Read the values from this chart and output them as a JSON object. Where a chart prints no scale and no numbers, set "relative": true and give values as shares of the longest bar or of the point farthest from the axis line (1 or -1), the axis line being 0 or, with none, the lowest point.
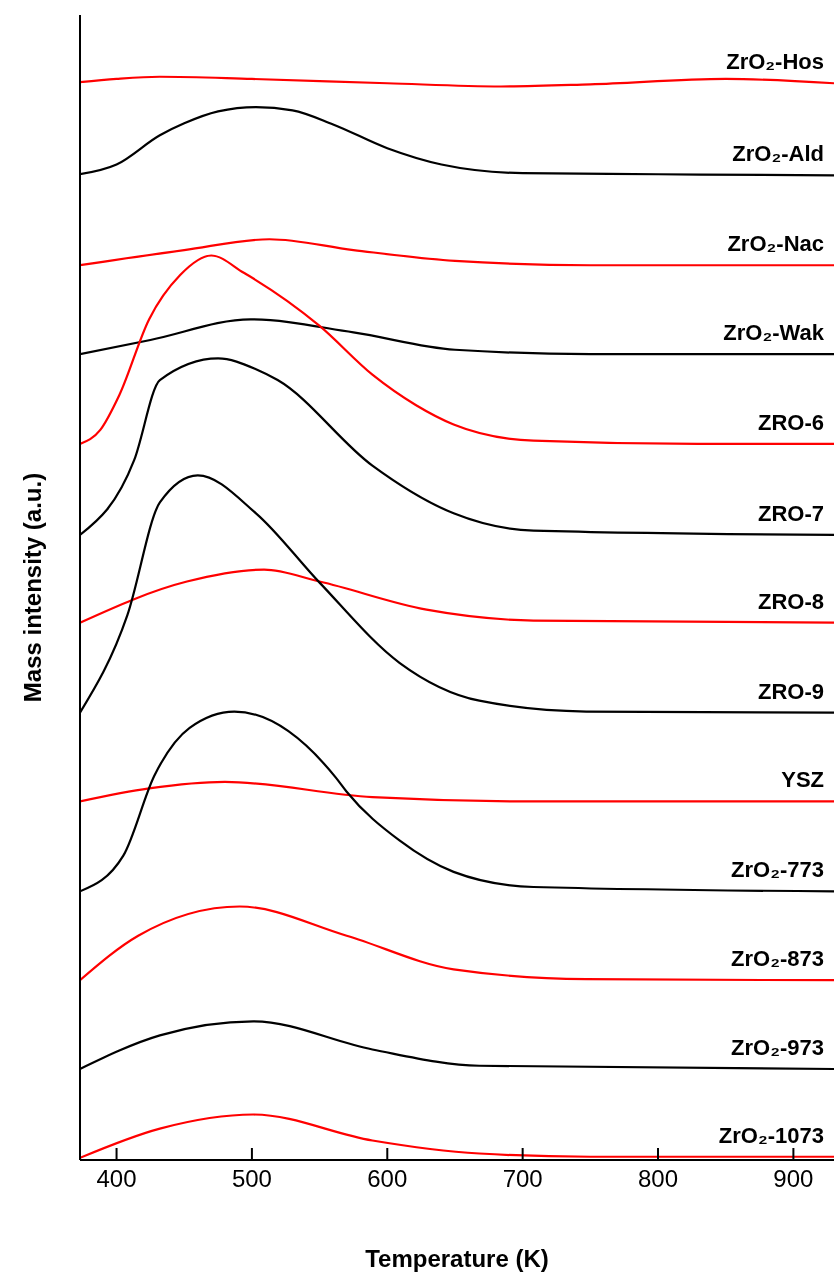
{
  "chart_data": {
    "type": "line",
    "relative": true,
    "xlabel": "Temperature (K)",
    "ylabel": "Mass intensity (a.u.)",
    "xlim": [
      373,
      930
    ],
    "xticks": [
      400,
      500,
      600,
      700,
      800,
      900
    ],
    "grid": false,
    "legend": false,
    "marker": "none",
    "series": [
      {
        "name": "ZrO₂-Hos",
        "color": "#ff0000",
        "x": [
          373,
          400,
          432,
          500,
          600,
          684,
          750,
          850,
          930
        ],
        "values": [
          0.995,
          0.998,
          1.0,
          0.998,
          0.994,
          0.991,
          0.993,
          0.998,
          0.994
        ]
      },
      {
        "name": "ZrO₂-Ald",
        "color": "#000000",
        "x": [
          373,
          400,
          432,
          450,
          475,
          503,
          530,
          560,
          600,
          640,
          700,
          800,
          930
        ],
        "values": [
          0.91,
          0.919,
          0.946,
          0.957,
          0.968,
          0.972,
          0.969,
          0.956,
          0.934,
          0.919,
          0.911,
          0.91,
          0.909
        ]
      },
      {
        "name": "ZrO₂-Nac",
        "color": "#ff0000",
        "x": [
          373,
          450,
          513,
          575,
          650,
          750,
          930
        ],
        "values": [
          0.826,
          0.84,
          0.85,
          0.84,
          0.83,
          0.826,
          0.826
        ]
      },
      {
        "name": "ZrO₂-Wak",
        "color": "#000000",
        "x": [
          373,
          425,
          499,
          575,
          650,
          750,
          930
        ],
        "values": [
          0.744,
          0.757,
          0.776,
          0.764,
          0.748,
          0.744,
          0.744
        ]
      },
      {
        "name": "ZRO-6",
        "color": "#ff0000",
        "x": [
          373,
          388,
          402,
          424,
          447,
          470,
          494,
          550,
          589,
          621,
          649,
          708,
          829,
          930
        ],
        "values": [
          0.661,
          0.674,
          0.706,
          0.776,
          0.817,
          0.835,
          0.819,
          0.77,
          0.725,
          0.697,
          0.679,
          0.664,
          0.661,
          0.661
        ]
      },
      {
        "name": "ZRO-7",
        "color": "#000000",
        "x": [
          373,
          413,
          432,
          475,
          503,
          519,
          589,
          649,
          708,
          930
        ],
        "values": [
          0.577,
          0.646,
          0.72,
          0.74,
          0.73,
          0.72,
          0.641,
          0.597,
          0.581,
          0.577
        ]
      },
      {
        "name": "ZRO-8",
        "color": "#ff0000",
        "x": [
          373,
          452,
          509,
          550,
          629,
          708,
          930
        ],
        "values": [
          0.496,
          0.534,
          0.545,
          0.534,
          0.508,
          0.498,
          0.496
        ]
      },
      {
        "name": "ZRO-9",
        "color": "#000000",
        "x": [
          373,
          408,
          432,
          460,
          503,
          550,
          609,
          668,
          747,
          930
        ],
        "values": [
          0.413,
          0.503,
          0.607,
          0.632,
          0.597,
          0.533,
          0.459,
          0.424,
          0.414,
          0.413
        ]
      },
      {
        "name": "YSZ",
        "color": "#ff0000",
        "x": [
          373,
          424,
          480,
          589,
          708,
          930
        ],
        "values": [
          0.331,
          0.343,
          0.349,
          0.335,
          0.331,
          0.331
        ]
      },
      {
        "name": "ZrO₂-773",
        "color": "#000000",
        "x": [
          373,
          405,
          428,
          454,
          487,
          562,
          570,
          609,
          649,
          708,
          930
        ],
        "values": [
          0.248,
          0.281,
          0.355,
          0.399,
          0.414,
          0.353,
          0.34,
          0.295,
          0.266,
          0.252,
          0.248
        ]
      },
      {
        "name": "ZrO₂-873",
        "color": "#ff0000",
        "x": [
          373,
          416,
          491,
          570,
          649,
          747,
          930
        ],
        "values": [
          0.166,
          0.207,
          0.234,
          0.207,
          0.176,
          0.167,
          0.166
        ]
      },
      {
        "name": "ZrO₂-973",
        "color": "#000000",
        "x": [
          373,
          432,
          501,
          589,
          668,
          930
        ],
        "values": [
          0.084,
          0.115,
          0.128,
          0.102,
          0.087,
          0.084
        ]
      },
      {
        "name": "ZrO₂-1073",
        "color": "#ff0000",
        "x": [
          373,
          432,
          501,
          589,
          668,
          750,
          930
        ],
        "values": [
          0.002,
          0.029,
          0.042,
          0.018,
          0.006,
          0.003,
          0.003
        ]
      }
    ]
  }
}
